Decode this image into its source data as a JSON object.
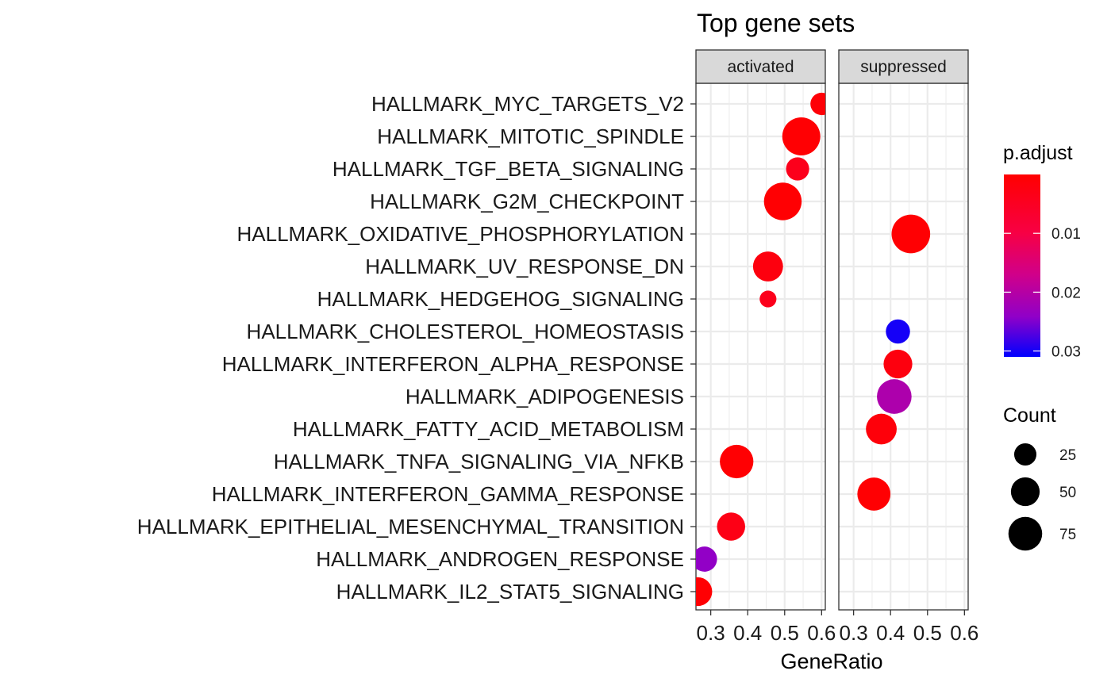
{
  "chart_data": {
    "type": "scatter",
    "title": "Top gene sets",
    "xlabel": "GeneRatio",
    "ylabel": "",
    "xlim": [
      0.26,
      0.61
    ],
    "x_ticks": [
      0.3,
      0.4,
      0.5,
      0.6
    ],
    "x_tick_labels": [
      "0.3",
      "0.4",
      "0.5",
      "0.6"
    ],
    "grid": true,
    "facets": [
      "activated",
      "suppressed"
    ],
    "categories": [
      "HALLMARK_MYC_TARGETS_V2",
      "HALLMARK_MITOTIC_SPINDLE",
      "HALLMARK_TGF_BETA_SIGNALING",
      "HALLMARK_G2M_CHECKPOINT",
      "HALLMARK_OXIDATIVE_PHOSPHORYLATION",
      "HALLMARK_UV_RESPONSE_DN",
      "HALLMARK_HEDGEHOG_SIGNALING",
      "HALLMARK_CHOLESTEROL_HOMEOSTASIS",
      "HALLMARK_INTERFERON_ALPHA_RESPONSE",
      "HALLMARK_ADIPOGENESIS",
      "HALLMARK_FATTY_ACID_METABOLISM",
      "HALLMARK_TNFA_SIGNALING_VIA_NFKB",
      "HALLMARK_INTERFERON_GAMMA_RESPONSE",
      "HALLMARK_EPITHELIAL_MESENCHYMAL_TRANSITION",
      "HALLMARK_ANDROGEN_RESPONSE",
      "HALLMARK_IL2_STAT5_SIGNALING"
    ],
    "points": [
      {
        "facet": "activated",
        "category": "HALLMARK_MYC_TARGETS_V2",
        "x": 0.6,
        "count": 20,
        "p_adjust": 0.001
      },
      {
        "facet": "activated",
        "category": "HALLMARK_MITOTIC_SPINDLE",
        "x": 0.545,
        "count": 82,
        "p_adjust": 0.0005
      },
      {
        "facet": "activated",
        "category": "HALLMARK_TGF_BETA_SIGNALING",
        "x": 0.535,
        "count": 22,
        "p_adjust": 0.004
      },
      {
        "facet": "activated",
        "category": "HALLMARK_G2M_CHECKPOINT",
        "x": 0.495,
        "count": 80,
        "p_adjust": 0.0005
      },
      {
        "facet": "activated",
        "category": "HALLMARK_UV_RESPONSE_DN",
        "x": 0.455,
        "count": 45,
        "p_adjust": 0.002
      },
      {
        "facet": "activated",
        "category": "HALLMARK_HEDGEHOG_SIGNALING",
        "x": 0.455,
        "count": 8,
        "p_adjust": 0.004
      },
      {
        "facet": "activated",
        "category": "HALLMARK_TNFA_SIGNALING_VIA_NFKB",
        "x": 0.37,
        "count": 60,
        "p_adjust": 0.0005
      },
      {
        "facet": "activated",
        "category": "HALLMARK_EPITHELIAL_MESENCHYMAL_TRANSITION",
        "x": 0.355,
        "count": 38,
        "p_adjust": 0.003
      },
      {
        "facet": "activated",
        "category": "HALLMARK_ANDROGEN_RESPONSE",
        "x": 0.283,
        "count": 28,
        "p_adjust": 0.024
      },
      {
        "facet": "activated",
        "category": "HALLMARK_IL2_STAT5_SIGNALING",
        "x": 0.265,
        "count": 40,
        "p_adjust": 0.0005
      },
      {
        "facet": "suppressed",
        "category": "HALLMARK_OXIDATIVE_PHOSPHORYLATION",
        "x": 0.455,
        "count": 85,
        "p_adjust": 0.0005
      },
      {
        "facet": "suppressed",
        "category": "HALLMARK_CHOLESTEROL_HOMEOSTASIS",
        "x": 0.42,
        "count": 25,
        "p_adjust": 0.03
      },
      {
        "facet": "suppressed",
        "category": "HALLMARK_INTERFERON_ALPHA_RESPONSE",
        "x": 0.42,
        "count": 40,
        "p_adjust": 0.002
      },
      {
        "facet": "suppressed",
        "category": "HALLMARK_ADIPOGENESIS",
        "x": 0.41,
        "count": 65,
        "p_adjust": 0.021
      },
      {
        "facet": "suppressed",
        "category": "HALLMARK_FATTY_ACID_METABOLISM",
        "x": 0.375,
        "count": 48,
        "p_adjust": 0.0015
      },
      {
        "facet": "suppressed",
        "category": "HALLMARK_INTERFERON_GAMMA_RESPONSE",
        "x": 0.355,
        "count": 58,
        "p_adjust": 0.0005
      }
    ],
    "color_legend": {
      "title": "p.adjust",
      "range": [
        0.0,
        0.031
      ],
      "ticks": [
        0.01,
        0.02,
        0.03
      ],
      "tick_labels": [
        "0.01",
        "0.02",
        "0.03"
      ],
      "low_color": "#FF0000",
      "high_color": "#0000FF"
    },
    "size_legend": {
      "title": "Count",
      "values": [
        25,
        50,
        75
      ],
      "labels": [
        "25",
        "50",
        "75"
      ]
    },
    "colors": {
      "panel_background": "#FFFFFF",
      "grid": "#EBEBEB",
      "strip_fill": "#D9D9D9",
      "panel_border": "#333333"
    }
  }
}
